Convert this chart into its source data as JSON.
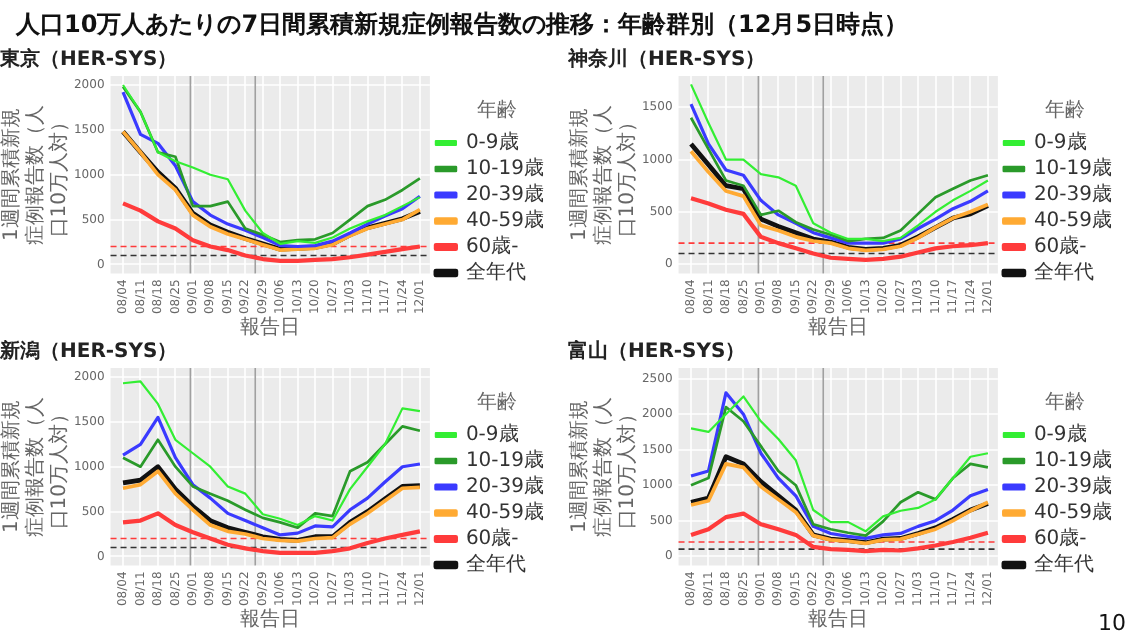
{
  "chart_data": [
    {
      "type": "line",
      "title": "東京（HER-SYS）",
      "annotations": [
        "人口10万人あたりの7日間累積新規症例報告数の推移：年齢群別（12月5日時点）"
      ],
      "xlabel": "報告日",
      "ylabel": "1週間累積新規症例報告数（人口10万人対）",
      "legend_title": "年齢",
      "legend": "right",
      "grid": true,
      "x": [
        "--08-04",
        "--08-11",
        "--08-18",
        "--08-25",
        "--09-01",
        "--09-08",
        "--09-15",
        "--09-22",
        "--09-29",
        "--10-06",
        "--10-13",
        "--10-20",
        "--10-27",
        "--11-03",
        "--11-10",
        "--11-17",
        "--11-24",
        "--12-01"
      ],
      "xlim": [
        "--07-30",
        "--12-05"
      ],
      "xticks": [
        {
          "value": "--08-04",
          "label": "08/04"
        },
        {
          "value": "--08-11",
          "label": "08/11"
        },
        {
          "value": "--08-18",
          "label": "08/18"
        },
        {
          "value": "--08-25",
          "label": "08/25"
        },
        {
          "value": "--09-01",
          "label": "09/01"
        },
        {
          "value": "--09-08",
          "label": "09/08"
        },
        {
          "value": "--09-15",
          "label": "09/15"
        },
        {
          "value": "--09-22",
          "label": "09/22"
        },
        {
          "value": "--09-29",
          "label": "09/29"
        },
        {
          "value": "--10-06",
          "label": "10/06"
        },
        {
          "value": "--10-13",
          "label": "10/13"
        },
        {
          "value": "--10-20",
          "label": "10/20"
        },
        {
          "value": "--10-27",
          "label": "10/27"
        },
        {
          "value": "--11-03",
          "label": "11/03"
        },
        {
          "value": "--11-10",
          "label": "11/10"
        },
        {
          "value": "--11-17",
          "label": "11/17"
        },
        {
          "value": "--11-24",
          "label": "11/24"
        },
        {
          "value": "--12-01",
          "label": "12/01"
        }
      ],
      "ylim": [
        -100,
        2100
      ],
      "yticks": [
        0,
        500,
        1000,
        1500,
        2000
      ],
      "ref_lines": [
        {
          "axis": "x",
          "value": "--08-31",
          "color": "#a0a0a0",
          "line_style": "solid"
        },
        {
          "axis": "x",
          "value": "--09-26",
          "color": "#a0a0a0",
          "line_style": "solid"
        },
        {
          "axis": "y",
          "value": 200,
          "color": "#ff3b3b",
          "line_style": "dashed"
        },
        {
          "axis": "y",
          "value": 100,
          "color": "#333333",
          "line_style": "dashed"
        }
      ],
      "series": [
        {
          "name": "0-9歳",
          "color": "#33ee33",
          "values": [
            2000,
            1700,
            1250,
            1150,
            1080,
            1000,
            950,
            600,
            350,
            230,
            260,
            240,
            300,
            400,
            480,
            550,
            650,
            750
          ]
        },
        {
          "name": "10-19歳",
          "color": "#2a9a2a",
          "values": [
            1980,
            1700,
            1250,
            1200,
            650,
            650,
            700,
            400,
            330,
            250,
            270,
            280,
            350,
            500,
            650,
            720,
            830,
            960
          ]
        },
        {
          "name": "20-39歳",
          "color": "#3a3aff",
          "values": [
            1920,
            1450,
            1350,
            1100,
            700,
            550,
            450,
            380,
            300,
            210,
            200,
            210,
            260,
            350,
            450,
            540,
            620,
            760
          ]
        },
        {
          "name": "40-59歳",
          "color": "#ffaa33",
          "values": [
            1480,
            1250,
            1000,
            830,
            550,
            420,
            340,
            280,
            220,
            160,
            170,
            180,
            220,
            320,
            400,
            450,
            500,
            610
          ]
        },
        {
          "name": "60歳-",
          "color": "#ff3b3b",
          "values": [
            680,
            600,
            480,
            400,
            270,
            200,
            160,
            100,
            60,
            40,
            40,
            50,
            60,
            80,
            110,
            140,
            170,
            200
          ]
        },
        {
          "name": "全年代",
          "color": "#111111",
          "values": [
            1480,
            1250,
            1030,
            850,
            570,
            440,
            360,
            290,
            230,
            170,
            180,
            190,
            230,
            330,
            410,
            460,
            510,
            590
          ]
        }
      ]
    },
    {
      "type": "line",
      "title": "神奈川（HER-SYS）",
      "xlabel": "報告日",
      "ylabel": "1週間累積新規症例報告数（人口10万人対）",
      "legend_title": "年齢",
      "legend": "right",
      "grid": true,
      "x": [
        "--08-04",
        "--08-11",
        "--08-18",
        "--08-25",
        "--09-01",
        "--09-08",
        "--09-15",
        "--09-22",
        "--09-29",
        "--10-06",
        "--10-13",
        "--10-20",
        "--10-27",
        "--11-03",
        "--11-10",
        "--11-17",
        "--11-24",
        "--12-01"
      ],
      "xlim": [
        "--07-30",
        "--12-05"
      ],
      "xticks": [
        {
          "value": "--08-04",
          "label": "08/04"
        },
        {
          "value": "--08-11",
          "label": "08/11"
        },
        {
          "value": "--08-18",
          "label": "08/18"
        },
        {
          "value": "--08-25",
          "label": "08/25"
        },
        {
          "value": "--09-01",
          "label": "09/01"
        },
        {
          "value": "--09-08",
          "label": "09/08"
        },
        {
          "value": "--09-15",
          "label": "09/15"
        },
        {
          "value": "--09-22",
          "label": "09/22"
        },
        {
          "value": "--09-29",
          "label": "09/29"
        },
        {
          "value": "--10-06",
          "label": "10/06"
        },
        {
          "value": "--10-13",
          "label": "10/13"
        },
        {
          "value": "--10-20",
          "label": "10/20"
        },
        {
          "value": "--10-27",
          "label": "10/27"
        },
        {
          "value": "--11-03",
          "label": "11/03"
        },
        {
          "value": "--11-10",
          "label": "11/10"
        },
        {
          "value": "--11-17",
          "label": "11/17"
        },
        {
          "value": "--11-24",
          "label": "11/24"
        },
        {
          "value": "--12-01",
          "label": "12/01"
        }
      ],
      "ylim": [
        -90,
        1800
      ],
      "yticks": [
        0,
        500,
        1000,
        1500
      ],
      "ref_lines": [
        {
          "axis": "x",
          "value": "--08-31",
          "color": "#a0a0a0",
          "line_style": "solid"
        },
        {
          "axis": "x",
          "value": "--09-26",
          "color": "#a0a0a0",
          "line_style": "solid"
        },
        {
          "axis": "y",
          "value": 200,
          "color": "#ff3b3b",
          "line_style": "dashed"
        },
        {
          "axis": "y",
          "value": 100,
          "color": "#333333",
          "line_style": "dashed"
        }
      ],
      "series": [
        {
          "name": "0-9歳",
          "color": "#33ee33",
          "values": [
            1720,
            1350,
            1000,
            1000,
            860,
            830,
            750,
            390,
            300,
            240,
            240,
            220,
            250,
            370,
            500,
            610,
            700,
            800
          ]
        },
        {
          "name": "10-19歳",
          "color": "#2a9a2a",
          "values": [
            1400,
            1100,
            800,
            750,
            470,
            510,
            400,
            330,
            280,
            220,
            240,
            250,
            320,
            480,
            640,
            720,
            800,
            850
          ]
        },
        {
          "name": "20-39歳",
          "color": "#3a3aff",
          "values": [
            1530,
            1150,
            900,
            850,
            610,
            470,
            390,
            300,
            250,
            200,
            200,
            200,
            240,
            340,
            430,
            530,
            600,
            700
          ]
        },
        {
          "name": "40-59歳",
          "color": "#ffaa33",
          "values": [
            1080,
            880,
            700,
            650,
            370,
            320,
            260,
            220,
            200,
            150,
            130,
            140,
            170,
            250,
            350,
            440,
            500,
            570
          ]
        },
        {
          "name": "60歳-",
          "color": "#ff3b3b",
          "values": [
            630,
            580,
            520,
            480,
            260,
            200,
            150,
            100,
            60,
            50,
            40,
            50,
            70,
            110,
            150,
            170,
            180,
            200
          ]
        },
        {
          "name": "全年代",
          "color": "#111111",
          "values": [
            1150,
            950,
            750,
            720,
            430,
            360,
            300,
            240,
            210,
            160,
            140,
            150,
            180,
            260,
            350,
            440,
            480,
            560
          ]
        }
      ]
    },
    {
      "type": "line",
      "title": "新潟（HER-SYS）",
      "xlabel": "報告日",
      "ylabel": "1週間累積新規症例報告数（人口10万人対）",
      "legend_title": "年齢",
      "legend": "right",
      "grid": true,
      "x": [
        "--08-04",
        "--08-11",
        "--08-18",
        "--08-25",
        "--09-01",
        "--09-08",
        "--09-15",
        "--09-22",
        "--09-29",
        "--10-06",
        "--10-13",
        "--10-20",
        "--10-27",
        "--11-03",
        "--11-10",
        "--11-17",
        "--11-24",
        "--12-01"
      ],
      "xlim": [
        "--07-30",
        "--12-05"
      ],
      "xticks": [
        {
          "value": "--08-04",
          "label": "08/04"
        },
        {
          "value": "--08-11",
          "label": "08/11"
        },
        {
          "value": "--08-18",
          "label": "08/18"
        },
        {
          "value": "--08-25",
          "label": "08/25"
        },
        {
          "value": "--09-01",
          "label": "09/01"
        },
        {
          "value": "--09-08",
          "label": "09/08"
        },
        {
          "value": "--09-15",
          "label": "09/15"
        },
        {
          "value": "--09-22",
          "label": "09/22"
        },
        {
          "value": "--09-29",
          "label": "09/29"
        },
        {
          "value": "--10-06",
          "label": "10/06"
        },
        {
          "value": "--10-13",
          "label": "10/13"
        },
        {
          "value": "--10-20",
          "label": "10/20"
        },
        {
          "value": "--10-27",
          "label": "10/27"
        },
        {
          "value": "--11-03",
          "label": "11/03"
        },
        {
          "value": "--11-10",
          "label": "11/10"
        },
        {
          "value": "--11-17",
          "label": "11/17"
        },
        {
          "value": "--11-24",
          "label": "11/24"
        },
        {
          "value": "--12-01",
          "label": "12/01"
        }
      ],
      "ylim": [
        -100,
        2100
      ],
      "yticks": [
        0,
        500,
        1000,
        1500,
        2000
      ],
      "ref_lines": [
        {
          "axis": "x",
          "value": "--08-31",
          "color": "#a0a0a0",
          "line_style": "solid"
        },
        {
          "axis": "x",
          "value": "--09-26",
          "color": "#a0a0a0",
          "line_style": "solid"
        },
        {
          "axis": "y",
          "value": 200,
          "color": "#ff3b3b",
          "line_style": "dashed"
        },
        {
          "axis": "y",
          "value": 100,
          "color": "#333333",
          "line_style": "dashed"
        }
      ],
      "series": [
        {
          "name": "0-9歳",
          "color": "#33ee33",
          "values": [
            1930,
            1950,
            1700,
            1300,
            1150,
            1000,
            780,
            700,
            470,
            420,
            350,
            450,
            400,
            750,
            1000,
            1250,
            1650,
            1620
          ]
        },
        {
          "name": "10-19歳",
          "color": "#2a9a2a",
          "values": [
            1100,
            1000,
            1300,
            1000,
            780,
            700,
            620,
            520,
            430,
            380,
            320,
            480,
            450,
            950,
            1050,
            1250,
            1450,
            1400
          ]
        },
        {
          "name": "20-39歳",
          "color": "#3a3aff",
          "values": [
            1130,
            1250,
            1550,
            1100,
            800,
            650,
            480,
            400,
            320,
            240,
            260,
            340,
            330,
            520,
            650,
            830,
            1000,
            1030
          ]
        },
        {
          "name": "40-59歳",
          "color": "#ffaa33",
          "values": [
            760,
            800,
            950,
            700,
            520,
            350,
            280,
            250,
            200,
            180,
            170,
            200,
            210,
            360,
            480,
            620,
            760,
            770
          ]
        },
        {
          "name": "60歳-",
          "color": "#ff3b3b",
          "values": [
            380,
            400,
            480,
            350,
            270,
            200,
            130,
            90,
            60,
            40,
            40,
            40,
            60,
            90,
            150,
            200,
            240,
            280
          ]
        },
        {
          "name": "全年代",
          "color": "#111111",
          "values": [
            820,
            850,
            1000,
            750,
            560,
            400,
            320,
            270,
            220,
            190,
            180,
            220,
            220,
            380,
            500,
            640,
            780,
            790
          ]
        }
      ]
    },
    {
      "type": "line",
      "title": "富山（HER-SYS）",
      "annotations": [
        "10"
      ],
      "xlabel": "報告日",
      "ylabel": "1週間累積新規症例報告数（人口10万人対）",
      "legend_title": "年齢",
      "legend": "right",
      "grid": true,
      "x": [
        "--08-04",
        "--08-11",
        "--08-18",
        "--08-25",
        "--09-01",
        "--09-08",
        "--09-15",
        "--09-22",
        "--09-29",
        "--10-06",
        "--10-13",
        "--10-20",
        "--10-27",
        "--11-03",
        "--11-10",
        "--11-17",
        "--11-24",
        "--12-01"
      ],
      "xlim": [
        "--07-30",
        "--12-05"
      ],
      "xticks": [
        {
          "value": "--08-04",
          "label": "08/04"
        },
        {
          "value": "--08-11",
          "label": "08/11"
        },
        {
          "value": "--08-18",
          "label": "08/18"
        },
        {
          "value": "--08-25",
          "label": "08/25"
        },
        {
          "value": "--09-01",
          "label": "09/01"
        },
        {
          "value": "--09-08",
          "label": "09/08"
        },
        {
          "value": "--09-15",
          "label": "09/15"
        },
        {
          "value": "--09-22",
          "label": "09/22"
        },
        {
          "value": "--09-29",
          "label": "09/29"
        },
        {
          "value": "--10-06",
          "label": "10/06"
        },
        {
          "value": "--10-13",
          "label": "10/13"
        },
        {
          "value": "--10-20",
          "label": "10/20"
        },
        {
          "value": "--10-27",
          "label": "10/27"
        },
        {
          "value": "--11-03",
          "label": "11/03"
        },
        {
          "value": "--11-10",
          "label": "11/10"
        },
        {
          "value": "--11-17",
          "label": "11/17"
        },
        {
          "value": "--11-24",
          "label": "11/24"
        },
        {
          "value": "--12-01",
          "label": "12/01"
        }
      ],
      "ylim": [
        -130,
        2650
      ],
      "yticks": [
        0,
        500,
        1000,
        1500,
        2000,
        2500
      ],
      "ref_lines": [
        {
          "axis": "x",
          "value": "--08-31",
          "color": "#a0a0a0",
          "line_style": "solid"
        },
        {
          "axis": "x",
          "value": "--09-26",
          "color": "#a0a0a0",
          "line_style": "solid"
        },
        {
          "axis": "y",
          "value": 200,
          "color": "#ff3b3b",
          "line_style": "dashed"
        },
        {
          "axis": "y",
          "value": 100,
          "color": "#333333",
          "line_style": "dashed"
        }
      ],
      "series": [
        {
          "name": "0-9歳",
          "color": "#33ee33",
          "values": [
            1800,
            1750,
            2000,
            2250,
            1900,
            1650,
            1350,
            650,
            480,
            480,
            350,
            560,
            640,
            680,
            800,
            1100,
            1400,
            1450
          ]
        },
        {
          "name": "10-19歳",
          "color": "#2a9a2a",
          "values": [
            1000,
            1100,
            2100,
            1900,
            1550,
            1200,
            1000,
            450,
            380,
            330,
            290,
            490,
            760,
            900,
            800,
            1100,
            1300,
            1250
          ]
        },
        {
          "name": "20-39歳",
          "color": "#3a3aff",
          "values": [
            1130,
            1200,
            2300,
            2000,
            1450,
            1100,
            850,
            420,
            320,
            280,
            250,
            300,
            320,
            420,
            500,
            650,
            850,
            940
          ]
        },
        {
          "name": "40-59歳",
          "color": "#ffaa33",
          "values": [
            720,
            780,
            1300,
            1250,
            980,
            800,
            620,
            290,
            230,
            210,
            180,
            230,
            240,
            310,
            380,
            500,
            640,
            760
          ]
        },
        {
          "name": "60歳-",
          "color": "#ff3b3b",
          "values": [
            300,
            380,
            550,
            600,
            450,
            380,
            300,
            130,
            100,
            90,
            70,
            90,
            80,
            110,
            150,
            200,
            260,
            330
          ]
        },
        {
          "name": "全年代",
          "color": "#111111",
          "values": [
            760,
            820,
            1400,
            1300,
            1050,
            850,
            650,
            300,
            240,
            220,
            190,
            240,
            250,
            320,
            400,
            520,
            650,
            740
          ]
        }
      ]
    }
  ]
}
